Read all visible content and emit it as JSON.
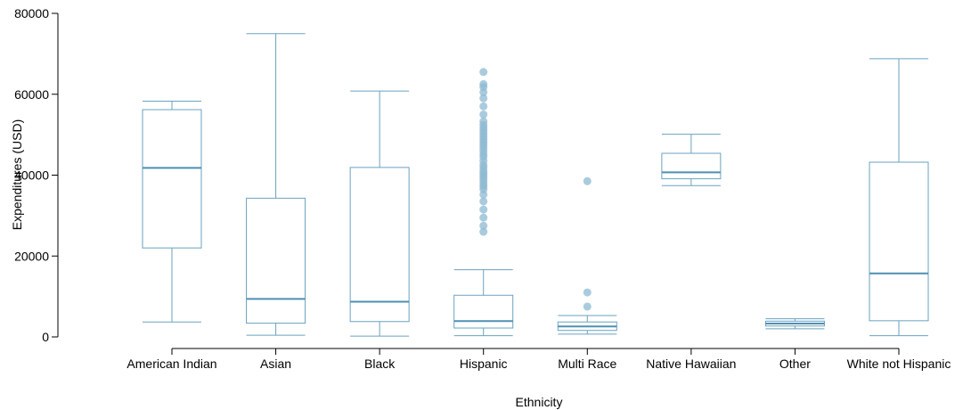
{
  "chart_data": {
    "type": "box",
    "title": "",
    "xlabel": "Ethnicity",
    "ylabel": "Expenditures (USD)",
    "ylim": [
      0,
      80000
    ],
    "yticks": [
      0,
      20000,
      40000,
      60000,
      80000
    ],
    "ytick_labels": [
      "0",
      "20000",
      "40000",
      "60000",
      "80000"
    ],
    "grid": false,
    "colors": {
      "box": "#6AA2BF",
      "median": "#4E8FB2",
      "outlier": "#8DB9D2"
    },
    "categories": [
      "American Indian",
      "Asian",
      "Black",
      "Hispanic",
      "Multi Race",
      "Native Hawaiian",
      "Other",
      "White not Hispanic"
    ],
    "boxes": [
      {
        "category": "American Indian",
        "whisker_low": 3700,
        "q1": 22000,
        "median": 41800,
        "q3": 56200,
        "whisker_high": 58300,
        "outliers": []
      },
      {
        "category": "Asian",
        "whisker_low": 400,
        "q1": 3400,
        "median": 9400,
        "q3": 34300,
        "whisker_high": 75000,
        "outliers": []
      },
      {
        "category": "Black",
        "whisker_low": 200,
        "q1": 3800,
        "median": 8700,
        "q3": 41900,
        "whisker_high": 60800,
        "outliers": []
      },
      {
        "category": "Hispanic",
        "whisker_low": 300,
        "q1": 2200,
        "median": 3900,
        "q3": 10300,
        "whisker_high": 16600,
        "outliers": [
          26000,
          27500,
          29500,
          31500,
          33500,
          35200,
          36500,
          37200,
          37800,
          38500,
          39200,
          39800,
          40400,
          41000,
          41800,
          42500,
          43500,
          44500,
          45200,
          46000,
          46800,
          47500,
          48200,
          48900,
          49600,
          50300,
          51000,
          51700,
          52400,
          53300,
          55000,
          57000,
          59000,
          60500,
          61800,
          62500,
          65500
        ]
      },
      {
        "category": "Multi Race",
        "whisker_low": 700,
        "q1": 1600,
        "median": 2600,
        "q3": 3700,
        "whisker_high": 5300,
        "outliers": [
          7500,
          11000,
          38500
        ]
      },
      {
        "category": "Native Hawaiian",
        "whisker_low": 37400,
        "q1": 39100,
        "median": 40700,
        "q3": 45400,
        "whisker_high": 50100,
        "outliers": []
      },
      {
        "category": "Other",
        "whisker_low": 2000,
        "q1": 2700,
        "median": 3300,
        "q3": 3900,
        "whisker_high": 4500,
        "outliers": []
      },
      {
        "category": "White not Hispanic",
        "whisker_low": 300,
        "q1": 4000,
        "median": 15700,
        "q3": 43200,
        "whisker_high": 68800,
        "outliers": []
      }
    ]
  }
}
